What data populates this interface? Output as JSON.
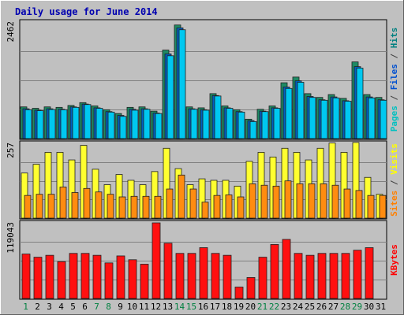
{
  "chart_data": {
    "type": "bar",
    "title": "Daily usage for June 2014",
    "categories": [
      "1",
      "2",
      "3",
      "4",
      "5",
      "6",
      "7",
      "8",
      "9",
      "10",
      "11",
      "12",
      "13",
      "14",
      "15",
      "16",
      "17",
      "18",
      "19",
      "20",
      "21",
      "22",
      "23",
      "24",
      "25",
      "26",
      "27",
      "28",
      "29",
      "30",
      "31"
    ],
    "weekend_days": [
      "1",
      "7",
      "8",
      "14",
      "15",
      "21",
      "22",
      "28",
      "29"
    ],
    "panels": [
      {
        "id": "hits",
        "y_max_label": "2462",
        "y_max": 2462,
        "right_label": [
          "Pages",
          " / ",
          "Files",
          " / ",
          "Hits"
        ],
        "right_label_colors": [
          "#00c0c0",
          "#404040",
          "#0050d0",
          "#404040",
          "#008080"
        ],
        "series": [
          {
            "name": "Hits",
            "color": "#1e8a64",
            "values": [
              670,
              640,
              670,
              660,
              700,
              760,
              690,
              610,
              530,
              660,
              670,
              580,
              1870,
              2400,
              670,
              650,
              950,
              690,
              610,
              410,
              620,
              690,
              1180,
              1300,
              950,
              870,
              930,
              850,
              1620,
              930,
              870
            ]
          },
          {
            "name": "Files",
            "color": "#0060c0",
            "values": [
              630,
              600,
              630,
              620,
              670,
              730,
              650,
              570,
              490,
              620,
              630,
              540,
              1790,
              2340,
              630,
              610,
              910,
              650,
              570,
              380,
              580,
              650,
              1090,
              1220,
              890,
              820,
              880,
              800,
              1520,
              880,
              820
            ]
          },
          {
            "name": "Pages",
            "color": "#00c8f0",
            "values": [
              610,
              590,
              615,
              610,
              660,
              720,
              640,
              560,
              470,
              600,
              620,
              530,
              1750,
              2300,
              620,
              600,
              900,
              640,
              560,
              360,
              570,
              640,
              1060,
              1190,
              870,
              810,
              860,
              790,
              1490,
              860,
              810
            ]
          }
        ]
      },
      {
        "id": "visits",
        "y_max_label": "257",
        "y_max": 257,
        "right_label": [
          "Sites",
          " / ",
          "Visits"
        ],
        "right_label_colors": [
          "#ff8000",
          "#404040",
          "#ffff00"
        ],
        "series": [
          {
            "name": "Visits",
            "color": "#ffff30",
            "values": [
              155,
              185,
              226,
              226,
              200,
              250,
              168,
              115,
              150,
              130,
              115,
              160,
              240,
              170,
              115,
              135,
              130,
              130,
              110,
              195,
              226,
              210,
              240,
              226,
              200,
              240,
              258,
              226,
              260,
              140,
              82
            ]
          },
          {
            "name": "Sites",
            "color": "#ff8c10",
            "values": [
              78,
              82,
              82,
              107,
              88,
              102,
              90,
              82,
              73,
              75,
              75,
              75,
              100,
              148,
              100,
              55,
              78,
              80,
              73,
              118,
              113,
              110,
              128,
              118,
              118,
              118,
              113,
              100,
              95,
              78,
              78
            ]
          }
        ]
      },
      {
        "id": "kbytes",
        "y_max_label": "119043",
        "y_max": 119043,
        "right_label": [
          "KBytes"
        ],
        "right_label_colors": [
          "#ff0000"
        ],
        "series": [
          {
            "name": "KBytes",
            "color": "#ff1010",
            "values": [
              70000,
              65000,
              68000,
              58000,
              71000,
              71000,
              68000,
              56000,
              67000,
              61000,
              54000,
              119043,
              87000,
              71000,
              71000,
              80000,
              71000,
              68000,
              18000,
              33000,
              65000,
              85000,
              93000,
              71000,
              68000,
              71000,
              71000,
              71000,
              76000,
              80000,
              0
            ]
          }
        ]
      }
    ]
  }
}
